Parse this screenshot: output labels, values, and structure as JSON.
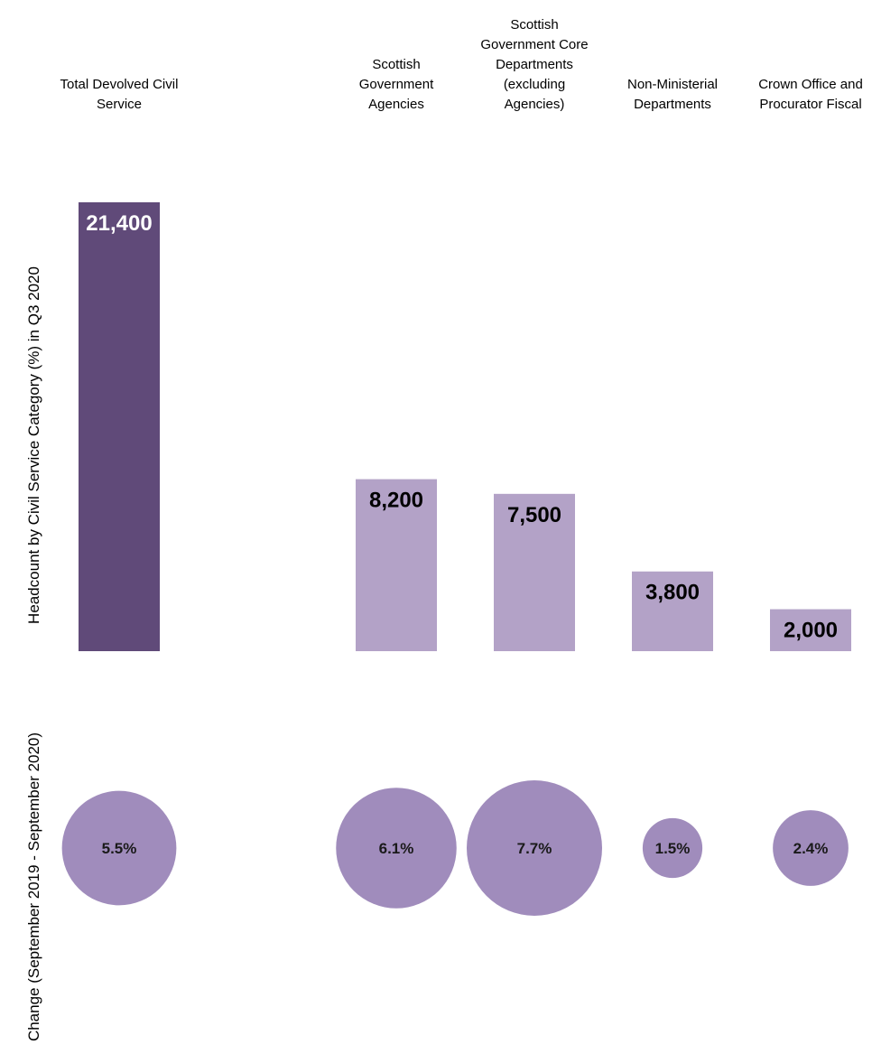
{
  "chart_data": [
    {
      "type": "bar",
      "categories": [
        "Total Devolved Civil Service",
        "Scottish Government Agencies",
        "Scottish Government Core Departments (excluding Agencies)",
        "Non-Ministerial Departments",
        "Crown Office and Procurator Fiscal"
      ],
      "values": [
        21400,
        8200,
        7500,
        3800,
        2000
      ],
      "data_labels": [
        "21,400",
        "8,200",
        "7,500",
        "3,800",
        "2,000"
      ],
      "ylabel": "Headcount by Civil Service Category (%) in Q3 2020",
      "ylim": [
        0,
        21400
      ],
      "grid": false,
      "colors": [
        "#604a79",
        "#b3a2c7",
        "#b3a2c7",
        "#b3a2c7",
        "#b3a2c7"
      ]
    },
    {
      "type": "scatter",
      "categories": [
        "Total Devolved Civil Service",
        "Scottish Government Agencies",
        "Scottish Government Core Departments (excluding Agencies)",
        "Non-Ministerial Departments",
        "Crown Office and Procurator Fiscal"
      ],
      "values": [
        5.5,
        6.1,
        7.7,
        1.5,
        2.4
      ],
      "data_labels": [
        "5.5%",
        "6.1%",
        "7.7%",
        "1.5%",
        "2.4%"
      ],
      "ylabel": "Change (September 2019 - September 2020)",
      "grid": false,
      "colors": [
        "#a08cbc",
        "#a08cbc",
        "#a08cbc",
        "#a08cbc",
        "#a08cbc"
      ]
    }
  ],
  "category_label_lines": [
    [
      "Total Devolved Civil",
      "Service"
    ],
    [
      "Scottish",
      "Government",
      "Agencies"
    ],
    [
      "Scottish",
      "Government Core",
      "Departments",
      "(excluding",
      "Agencies)"
    ],
    [
      "Non-Ministerial",
      "Departments"
    ],
    [
      "Crown Office and",
      "Procurator Fiscal"
    ]
  ],
  "colors": {
    "total_bar": "#604a79",
    "category_bar": "#b3a2c7",
    "bubble": "#a08cbc",
    "label_on_dark": "#ffffff",
    "label_on_light": "#000000"
  }
}
